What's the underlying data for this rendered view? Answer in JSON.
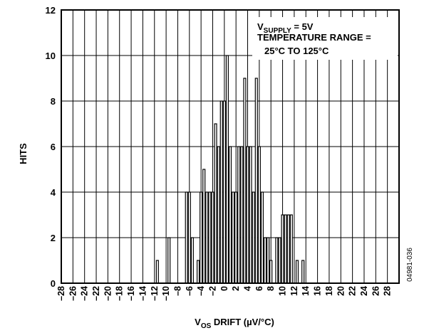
{
  "chart_data": {
    "type": "bar",
    "xlabel_main": "V",
    "xlabel_sub": "OS",
    "xlabel_rest": " DRIFT (µV/°C)",
    "ylabel": "HITS",
    "xlim": [
      -28,
      30
    ],
    "ylim": [
      0,
      12
    ],
    "yticks": [
      0,
      2,
      4,
      6,
      8,
      10,
      12
    ],
    "xticks": [
      -28,
      -26,
      -24,
      -22,
      -20,
      -18,
      -16,
      -14,
      -12,
      -10,
      -8,
      -6,
      -4,
      -2,
      0,
      2,
      4,
      6,
      8,
      10,
      12,
      14,
      16,
      18,
      20,
      22,
      24,
      26,
      28
    ],
    "grid": true,
    "bins": [
      {
        "x": -11.5,
        "value": 1
      },
      {
        "x": -9.5,
        "value": 2
      },
      {
        "x": -6.5,
        "value": 4
      },
      {
        "x": -6,
        "value": 4
      },
      {
        "x": -5.5,
        "value": 2
      },
      {
        "x": -4.5,
        "value": 1
      },
      {
        "x": -4,
        "value": 4
      },
      {
        "x": -3.5,
        "value": 5
      },
      {
        "x": -3,
        "value": 4
      },
      {
        "x": -2.5,
        "value": 4
      },
      {
        "x": -2,
        "value": 4
      },
      {
        "x": -1.5,
        "value": 7
      },
      {
        "x": -1,
        "value": 6
      },
      {
        "x": -0.5,
        "value": 8
      },
      {
        "x": 0,
        "value": 8
      },
      {
        "x": 0.5,
        "value": 10
      },
      {
        "x": 1,
        "value": 6
      },
      {
        "x": 1.5,
        "value": 4
      },
      {
        "x": 2,
        "value": 4
      },
      {
        "x": 2.5,
        "value": 6
      },
      {
        "x": 3,
        "value": 6
      },
      {
        "x": 3.5,
        "value": 9
      },
      {
        "x": 4,
        "value": 6
      },
      {
        "x": 4.5,
        "value": 6
      },
      {
        "x": 5,
        "value": 4
      },
      {
        "x": 5.5,
        "value": 9
      },
      {
        "x": 6,
        "value": 6
      },
      {
        "x": 6.5,
        "value": 4
      },
      {
        "x": 7,
        "value": 2
      },
      {
        "x": 7.5,
        "value": 2
      },
      {
        "x": 8,
        "value": 1
      },
      {
        "x": 9,
        "value": 2
      },
      {
        "x": 9.5,
        "value": 2
      },
      {
        "x": 10,
        "value": 3
      },
      {
        "x": 10.5,
        "value": 3
      },
      {
        "x": 11,
        "value": 3
      },
      {
        "x": 11.5,
        "value": 3
      },
      {
        "x": 12.5,
        "value": 1
      },
      {
        "x": 13.5,
        "value": 1
      }
    ],
    "annotation": {
      "line1_main": "V",
      "line1_sub": "SUPPLY",
      "line1_rest": " = 5V",
      "line2": "TEMPERATURE RANGE =",
      "line3": "25°C TO 125°C"
    },
    "figure_id": "04981-036"
  }
}
